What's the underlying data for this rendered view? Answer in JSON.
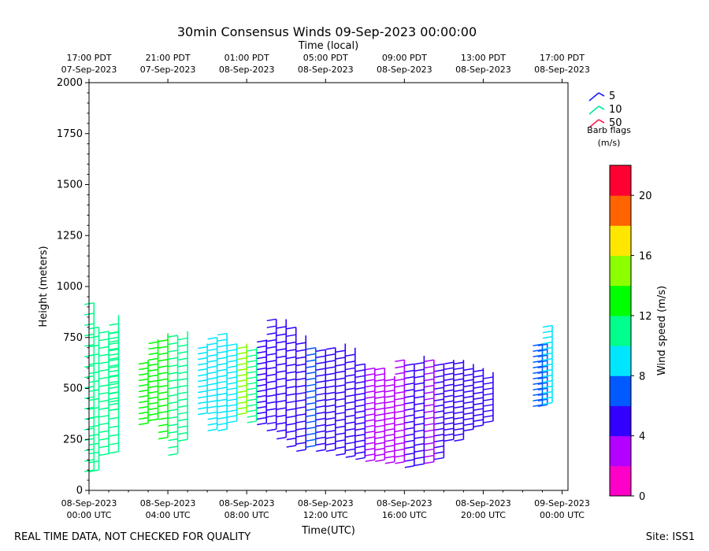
{
  "footer": {
    "left_note": "REAL TIME DATA, NOT CHECKED FOR QUALITY",
    "site": "Site: ISS1"
  },
  "chart_data": {
    "type": "wind-barb",
    "title": "30min Consensus Winds 09-Sep-2023 00:00:00",
    "xlabel_bottom": "Time(UTC)",
    "xlabel_top": "Time (local)",
    "ylabel": "Height (meters)",
    "ylim": [
      0,
      2000
    ],
    "y_ticks": [
      0,
      250,
      500,
      750,
      1000,
      1250,
      1500,
      1750,
      2000
    ],
    "xlim_hours_since_start": [
      0,
      24.3
    ],
    "x_ticks_bottom": [
      {
        "h": 0,
        "l1": "08-Sep-2023",
        "l2": "00:00 UTC"
      },
      {
        "h": 4,
        "l1": "08-Sep-2023",
        "l2": "04:00 UTC"
      },
      {
        "h": 8,
        "l1": "08-Sep-2023",
        "l2": "08:00 UTC"
      },
      {
        "h": 12,
        "l1": "08-Sep-2023",
        "l2": "12:00 UTC"
      },
      {
        "h": 16,
        "l1": "08-Sep-2023",
        "l2": "16:00 UTC"
      },
      {
        "h": 20,
        "l1": "08-Sep-2023",
        "l2": "20:00 UTC"
      },
      {
        "h": 24,
        "l1": "09-Sep-2023",
        "l2": "00:00 UTC"
      }
    ],
    "x_ticks_top": [
      {
        "h": 0,
        "l1": "17:00 PDT",
        "l2": "07-Sep-2023"
      },
      {
        "h": 4,
        "l1": "21:00 PDT",
        "l2": "07-Sep-2023"
      },
      {
        "h": 8,
        "l1": "01:00 PDT",
        "l2": "08-Sep-2023"
      },
      {
        "h": 12,
        "l1": "05:00 PDT",
        "l2": "08-Sep-2023"
      },
      {
        "h": 16,
        "l1": "09:00 PDT",
        "l2": "08-Sep-2023"
      },
      {
        "h": 20,
        "l1": "13:00 PDT",
        "l2": "08-Sep-2023"
      },
      {
        "h": 24,
        "l1": "17:00 PDT",
        "l2": "08-Sep-2023"
      }
    ],
    "legend": {
      "entries": [
        {
          "label": "5",
          "color": "#1a1aff"
        },
        {
          "label": "10",
          "color": "#00e8a0"
        },
        {
          "label": "50",
          "color": "#ff1a50"
        }
      ],
      "title_line1": "Barb flags",
      "title_line2": "(m/s)"
    },
    "colorbar": {
      "label": "Wind speed (m/s)",
      "min": 0,
      "max": 22,
      "ticks": [
        0,
        4,
        8,
        12,
        16,
        20
      ],
      "colors": [
        "#ff00c8",
        "#b400ff",
        "#3200ff",
        "#005aff",
        "#00e6ff",
        "#00ff8c",
        "#00ff00",
        "#8cff00",
        "#ffe600",
        "#ff6400",
        "#ff0032"
      ]
    },
    "profiles": [
      {
        "h": 0.25,
        "bottom": 100,
        "top": 920,
        "speed": 11
      },
      {
        "h": 0.5,
        "bottom": 100,
        "top": 800,
        "speed": 11
      },
      {
        "h": 1.0,
        "bottom": 180,
        "top": 780,
        "speed": 11
      },
      {
        "h": 1.5,
        "bottom": 190,
        "top": 860,
        "speed": 11
      },
      {
        "h": 1.5,
        "bottom": 400,
        "top": 800,
        "speed": 10.5
      },
      {
        "h": 3.0,
        "bottom": 330,
        "top": 640,
        "speed": 12
      },
      {
        "h": 3.5,
        "bottom": 350,
        "top": 740,
        "speed": 13
      },
      {
        "h": 4.0,
        "bottom": 260,
        "top": 770,
        "speed": 12.5
      },
      {
        "h": 4.5,
        "bottom": 180,
        "top": 760,
        "speed": 10
      },
      {
        "h": 5.0,
        "bottom": 250,
        "top": 780,
        "speed": 11
      },
      {
        "h": 6.0,
        "bottom": 380,
        "top": 720,
        "speed": 8.5
      },
      {
        "h": 6.5,
        "bottom": 300,
        "top": 750,
        "speed": 8.5
      },
      {
        "h": 7.0,
        "bottom": 300,
        "top": 770,
        "speed": 8.5
      },
      {
        "h": 7.5,
        "bottom": 340,
        "top": 720,
        "speed": 8.5
      },
      {
        "h": 8.0,
        "bottom": 380,
        "top": 720,
        "speed": 14
      },
      {
        "h": 8.5,
        "bottom": 340,
        "top": 700,
        "speed": 10
      },
      {
        "h": 9.0,
        "bottom": 330,
        "top": 740,
        "speed": 5
      },
      {
        "h": 9.5,
        "bottom": 300,
        "top": 840,
        "speed": 5
      },
      {
        "h": 10.0,
        "bottom": 260,
        "top": 840,
        "speed": 5
      },
      {
        "h": 10.5,
        "bottom": 220,
        "top": 800,
        "speed": 4
      },
      {
        "h": 11.0,
        "bottom": 200,
        "top": 760,
        "speed": 5
      },
      {
        "h": 11.5,
        "bottom": 220,
        "top": 700,
        "speed": 6
      },
      {
        "h": 12.0,
        "bottom": 200,
        "top": 690,
        "speed": 5
      },
      {
        "h": 12.5,
        "bottom": 200,
        "top": 700,
        "speed": 5
      },
      {
        "h": 13.0,
        "bottom": 180,
        "top": 720,
        "speed": 5
      },
      {
        "h": 13.5,
        "bottom": 170,
        "top": 700,
        "speed": 4
      },
      {
        "h": 14.0,
        "bottom": 160,
        "top": 620,
        "speed": 4
      },
      {
        "h": 14.5,
        "bottom": 150,
        "top": 600,
        "speed": 3
      },
      {
        "h": 15.0,
        "bottom": 150,
        "top": 600,
        "speed": 3
      },
      {
        "h": 15.5,
        "bottom": 140,
        "top": 560,
        "speed": 2
      },
      {
        "h": 16.0,
        "bottom": 140,
        "top": 640,
        "speed": 3
      },
      {
        "h": 16.5,
        "bottom": 120,
        "top": 620,
        "speed": 5
      },
      {
        "h": 17.0,
        "bottom": 130,
        "top": 660,
        "speed": 4
      },
      {
        "h": 17.5,
        "bottom": 140,
        "top": 640,
        "speed": 3
      },
      {
        "h": 18.0,
        "bottom": 160,
        "top": 620,
        "speed": 5
      },
      {
        "h": 18.5,
        "bottom": 250,
        "top": 640,
        "speed": 5
      },
      {
        "h": 19.0,
        "bottom": 250,
        "top": 640,
        "speed": 5
      },
      {
        "h": 19.5,
        "bottom": 300,
        "top": 620,
        "speed": 5
      },
      {
        "h": 20.0,
        "bottom": 320,
        "top": 600,
        "speed": 5
      },
      {
        "h": 20.5,
        "bottom": 340,
        "top": 580,
        "speed": 5
      },
      {
        "h": 23.0,
        "bottom": 420,
        "top": 720,
        "speed": 7
      },
      {
        "h": 23.25,
        "bottom": 420,
        "top": 720,
        "speed": 7
      },
      {
        "h": 23.5,
        "bottom": 430,
        "top": 810,
        "speed": 8.5
      }
    ]
  }
}
